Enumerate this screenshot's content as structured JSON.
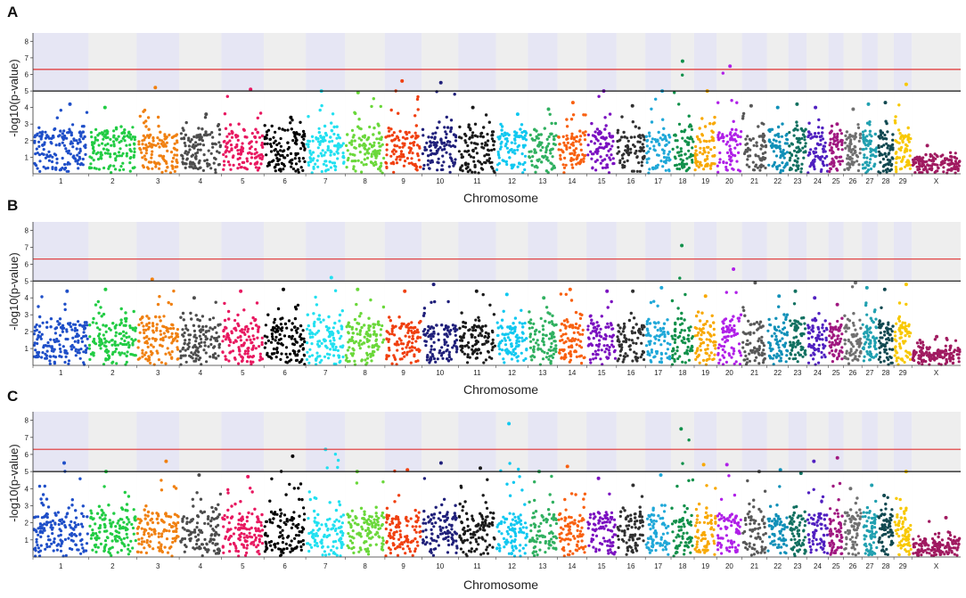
{
  "figure": {
    "caption_letters": [
      "A",
      "B",
      "C"
    ]
  },
  "chart_data": [
    {
      "type": "scatter",
      "subtype": "manhattan",
      "panel": "A",
      "title": "",
      "xlabel": "Chromosome",
      "ylabel": "-log10(p-value)",
      "ylim": [
        0,
        8.5
      ],
      "yticks": [
        "1",
        "2",
        "3",
        "4",
        "5",
        "6",
        "7",
        "8"
      ],
      "threshold_lines": [
        {
          "value": 6.3,
          "color": "#e03030"
        },
        {
          "value": 5.0,
          "color": "#111111"
        }
      ],
      "chromosomes": [
        "1",
        "2",
        "3",
        "4",
        "5",
        "6",
        "7",
        "8",
        "9",
        "10",
        "11",
        "12",
        "13",
        "14",
        "15",
        "16",
        "17",
        "18",
        "19",
        "20",
        "21",
        "22",
        "23",
        "24",
        "25",
        "26",
        "27",
        "28",
        "29",
        "X"
      ],
      "chrom_widths": [
        158,
        137,
        121,
        120,
        121,
        119,
        112,
        113,
        105,
        104,
        107,
        91,
        84,
        83,
        85,
        82,
        73,
        66,
        64,
        72,
        71,
        61,
        52,
        62,
        43,
        52,
        45,
        46,
        51,
        139
      ],
      "chrom_colors": [
        "#1f4fc8",
        "#22cc44",
        "#f08010",
        "#4d4d4d",
        "#e81860",
        "#000000",
        "#22e0f0",
        "#6ad83a",
        "#f04010",
        "#20207a",
        "#1a1a1a",
        "#10c8f0",
        "#30b060",
        "#f86010",
        "#7a10c0",
        "#303030",
        "#20a8d8",
        "#10904a",
        "#f8a800",
        "#b020e8",
        "#585858",
        "#1090b8",
        "#107060",
        "#5020c0",
        "#a01880",
        "#707070",
        "#20a0b0",
        "#104850",
        "#f8c800",
        "#a01a60"
      ],
      "chrom_peaks": [
        4.2,
        4.0,
        5.2,
        3.6,
        5.1,
        3.4,
        5.0,
        4.9,
        5.6,
        5.5,
        4.0,
        3.6,
        3.9,
        4.3,
        5.0,
        4.1,
        5.0,
        6.8,
        5.0,
        6.5,
        4.1,
        4.0,
        4.2,
        4.0,
        3.0,
        3.9,
        4.2,
        4.3,
        5.4,
        1.7
      ],
      "chrom_base": [
        2.2,
        2.2,
        2.2,
        2.2,
        2.2,
        2.2,
        2.2,
        2.2,
        2.2,
        2.2,
        2.2,
        2.2,
        2.2,
        2.2,
        2.2,
        2.2,
        2.2,
        2.2,
        2.2,
        2.2,
        2.2,
        2.2,
        2.2,
        2.2,
        2.2,
        2.2,
        2.2,
        2.2,
        2.2,
        0.7
      ]
    },
    {
      "type": "scatter",
      "subtype": "manhattan",
      "panel": "B",
      "title": "",
      "xlabel": "Chromosome",
      "ylabel": "-log10(p-value)",
      "ylim": [
        0,
        8.5
      ],
      "yticks": [
        "1",
        "2",
        "3",
        "4",
        "5",
        "6",
        "7",
        "8"
      ],
      "threshold_lines": [
        {
          "value": 6.3,
          "color": "#e03030"
        },
        {
          "value": 5.0,
          "color": "#111111"
        }
      ],
      "chromosomes": [
        "1",
        "2",
        "3",
        "4",
        "5",
        "6",
        "7",
        "8",
        "9",
        "10",
        "11",
        "12",
        "13",
        "14",
        "15",
        "16",
        "17",
        "18",
        "19",
        "20",
        "21",
        "22",
        "23",
        "24",
        "25",
        "26",
        "27",
        "28",
        "29",
        "X"
      ],
      "chrom_widths": [
        158,
        137,
        121,
        120,
        121,
        119,
        112,
        113,
        105,
        104,
        107,
        91,
        84,
        83,
        85,
        82,
        73,
        66,
        64,
        72,
        71,
        61,
        52,
        62,
        43,
        52,
        45,
        46,
        51,
        139
      ],
      "chrom_colors": [
        "#1f4fc8",
        "#22cc44",
        "#f08010",
        "#4d4d4d",
        "#e81860",
        "#000000",
        "#22e0f0",
        "#6ad83a",
        "#f04010",
        "#20207a",
        "#1a1a1a",
        "#10c8f0",
        "#30b060",
        "#f86010",
        "#7a10c0",
        "#303030",
        "#20a8d8",
        "#10904a",
        "#f8a800",
        "#b020e8",
        "#585858",
        "#1090b8",
        "#107060",
        "#5020c0",
        "#a01880",
        "#707070",
        "#20a0b0",
        "#104850",
        "#f8c800",
        "#a01a60"
      ],
      "chrom_peaks": [
        4.4,
        4.5,
        5.1,
        4.0,
        4.4,
        4.5,
        5.2,
        4.5,
        4.4,
        4.8,
        4.4,
        4.2,
        4.0,
        4.5,
        4.4,
        4.4,
        4.6,
        7.1,
        4.1,
        5.7,
        4.9,
        4.1,
        4.4,
        4.0,
        3.6,
        4.9,
        4.6,
        4.5,
        4.8,
        1.7
      ],
      "chrom_base": [
        2.2,
        2.2,
        2.2,
        2.2,
        2.2,
        2.2,
        2.2,
        2.2,
        2.2,
        2.2,
        2.2,
        2.2,
        2.2,
        2.2,
        2.2,
        2.2,
        2.2,
        2.2,
        2.2,
        2.2,
        2.2,
        2.2,
        2.2,
        2.2,
        2.2,
        2.2,
        2.2,
        2.2,
        2.2,
        0.7
      ]
    },
    {
      "type": "scatter",
      "subtype": "manhattan",
      "panel": "C",
      "title": "",
      "xlabel": "Chromosome",
      "ylabel": "-log10(p-value)",
      "ylim": [
        0,
        8.5
      ],
      "yticks": [
        "1",
        "2",
        "3",
        "4",
        "5",
        "6",
        "7",
        "8"
      ],
      "threshold_lines": [
        {
          "value": 6.3,
          "color": "#e03030"
        },
        {
          "value": 5.0,
          "color": "#111111"
        }
      ],
      "chromosomes": [
        "1",
        "2",
        "3",
        "4",
        "5",
        "6",
        "7",
        "8",
        "9",
        "10",
        "11",
        "12",
        "13",
        "14",
        "15",
        "16",
        "17",
        "18",
        "19",
        "20",
        "21",
        "22",
        "23",
        "24",
        "25",
        "26",
        "27",
        "28",
        "29",
        "X"
      ],
      "chrom_widths": [
        158,
        137,
        121,
        120,
        121,
        119,
        112,
        113,
        105,
        104,
        107,
        91,
        84,
        83,
        85,
        82,
        73,
        66,
        64,
        72,
        71,
        61,
        52,
        62,
        43,
        52,
        45,
        46,
        51,
        139
      ],
      "chrom_colors": [
        "#1f4fc8",
        "#22cc44",
        "#f08010",
        "#4d4d4d",
        "#e81860",
        "#000000",
        "#22e0f0",
        "#6ad83a",
        "#f04010",
        "#20207a",
        "#1a1a1a",
        "#10c8f0",
        "#30b060",
        "#f86010",
        "#7a10c0",
        "#303030",
        "#20a8d8",
        "#10904a",
        "#f8a800",
        "#b020e8",
        "#585858",
        "#1090b8",
        "#107060",
        "#5020c0",
        "#a01880",
        "#707070",
        "#20a0b0",
        "#104850",
        "#f8c800",
        "#a01a60"
      ],
      "chrom_peaks": [
        5.5,
        5.0,
        5.6,
        4.8,
        4.7,
        5.9,
        6.3,
        5.0,
        5.1,
        5.5,
        5.2,
        7.8,
        5.0,
        5.3,
        4.6,
        4.2,
        4.8,
        7.5,
        5.4,
        5.4,
        5.0,
        5.1,
        4.9,
        5.6,
        5.8,
        4.0,
        4.2,
        3.6,
        5.0,
        2.3
      ],
      "chrom_base": [
        2.2,
        2.2,
        2.2,
        2.2,
        2.2,
        2.2,
        2.2,
        2.2,
        2.2,
        2.2,
        2.2,
        2.2,
        2.2,
        2.2,
        2.2,
        2.2,
        2.2,
        2.2,
        2.2,
        2.2,
        2.2,
        2.2,
        2.2,
        2.2,
        2.2,
        2.2,
        2.2,
        2.2,
        2.2,
        0.7
      ]
    }
  ]
}
